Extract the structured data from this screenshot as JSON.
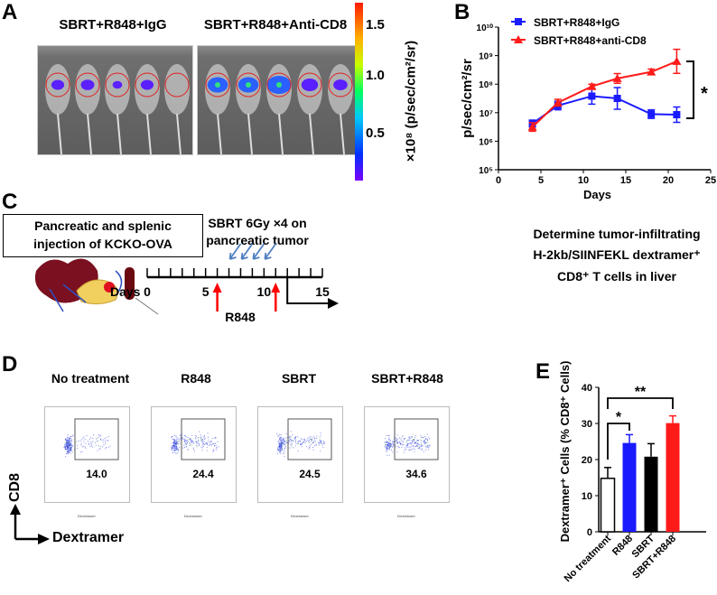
{
  "panel_labels": {
    "a": "A",
    "b": "B",
    "c": "C",
    "d": "D",
    "e": "E"
  },
  "panel_a": {
    "groups": [
      "SBRT+R848+IgG",
      "SBRT+R848+Anti-CD8"
    ],
    "colorbar": {
      "ticks": [
        "1.5",
        "1.0",
        "0.5"
      ],
      "tick_values": [
        1.5,
        1.0,
        0.5
      ],
      "range": [
        0.1,
        1.7
      ],
      "label": "×10⁸ (p/sec/cm²/sr)"
    },
    "igg_signal": [
      0.3,
      0.35,
      0.05,
      0.3,
      0
    ],
    "cd8_signal": [
      0.9,
      0.9,
      1.2,
      0.6,
      0.4
    ]
  },
  "chart_data": [
    {
      "type": "line",
      "panel": "B",
      "xlabel": "Days",
      "ylabel": "p/sec/cm²/sr",
      "xlim": [
        0,
        25
      ],
      "ylim": [
        100000,
        10000000000
      ],
      "yscale": "log",
      "xticks": [
        "0",
        "5",
        "10",
        "15",
        "20",
        "25"
      ],
      "yticks": [
        "10⁵",
        "10⁶",
        "10⁷",
        "10⁸",
        "10⁹",
        "10¹⁰"
      ],
      "legend": "top-left",
      "x": [
        4,
        7,
        11,
        14,
        18,
        21
      ],
      "series": [
        {
          "name": "SBRT+R848+IgG",
          "color": "#1a1aff",
          "marker": "square",
          "log_values": [
            6.62,
            7.25,
            7.58,
            7.5,
            6.95,
            6.93
          ],
          "log_err": [
            0.12,
            0.15,
            0.28,
            0.38,
            0.15,
            0.27
          ]
        },
        {
          "name": "SBRT+R848+anti-CD8",
          "color": "#ff1a1a",
          "marker": "triangle",
          "log_values": [
            6.5,
            7.35,
            7.92,
            8.2,
            8.43,
            8.8
          ],
          "log_err": [
            0.15,
            0.12,
            0.08,
            0.17,
            0.1,
            0.42
          ]
        }
      ],
      "significance": "*"
    },
    {
      "type": "bar",
      "panel": "E",
      "ylabel": "Dextramer⁺ Cells  (% CD8⁺ Cells)",
      "ylim": [
        0,
        40
      ],
      "yticks": [
        "0",
        "10",
        "20",
        "30",
        "40"
      ],
      "categories": [
        "No treatment",
        "R848",
        "SBRT",
        "SBRT+R848"
      ],
      "values": [
        14.8,
        24.6,
        20.8,
        30.1
      ],
      "errors": [
        3.0,
        2.3,
        3.6,
        2.0
      ],
      "colors": [
        "#ffffff",
        "#1a1aff",
        "#000000",
        "#ff1a1a"
      ],
      "significance": [
        {
          "pair": [
            "No treatment",
            "R848"
          ],
          "label": "*"
        },
        {
          "pair": [
            "No treatment",
            "SBRT+R848"
          ],
          "label": "**"
        }
      ]
    }
  ],
  "panel_c": {
    "box_text": [
      "Pancreatic and splenic",
      "injection of KCKO-OVA"
    ],
    "sbrt_text": [
      "SBRT 6Gy ×4 on",
      "pancreatic tumor"
    ],
    "days_label": "Days",
    "day_ticks": [
      "0",
      "5",
      "10",
      "15"
    ],
    "sbrt_days": [
      7,
      8,
      9,
      10
    ],
    "r848_days": [
      6,
      11
    ],
    "r848_label": "R848",
    "endpoint_day": 12,
    "outcome": [
      "Determine tumor-infiltrating",
      "H-2kb/SIINFEKL dextramer⁺",
      "CD8⁺ T cells in liver"
    ]
  },
  "panel_d": {
    "groups": [
      {
        "title": "No treatment",
        "value": "14.0"
      },
      {
        "title": "R848",
        "value": "24.4"
      },
      {
        "title": "SBRT",
        "value": "24.5"
      },
      {
        "title": "SBRT+R848",
        "value": "34.6"
      }
    ],
    "y_axis": "CD8",
    "x_axis": "Dextramer",
    "plot_x_label": "Dextramer",
    "plot_y_label": "CD8"
  }
}
